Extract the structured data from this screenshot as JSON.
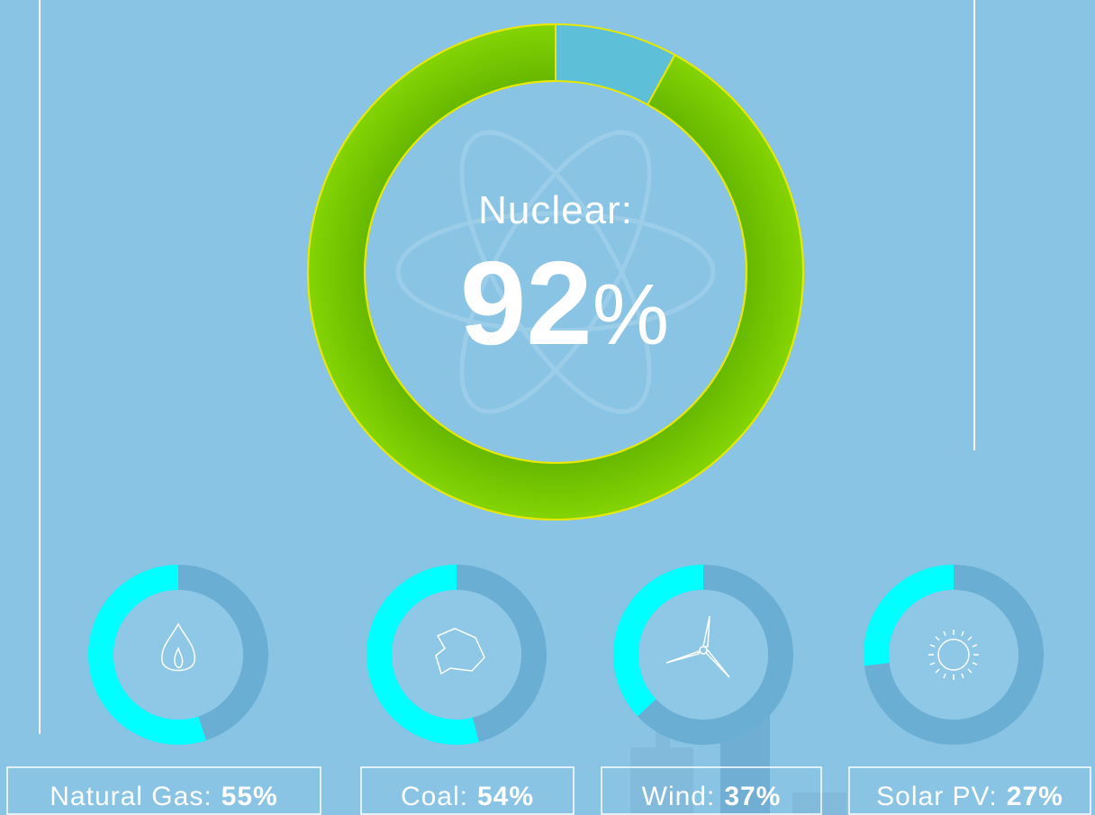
{
  "chart_data": [
    {
      "type": "donut",
      "title": "Nuclear:",
      "values": [
        92
      ],
      "value_labels": [
        "92%"
      ],
      "color": "#78cc00",
      "ylim": [
        0,
        100
      ]
    },
    {
      "type": "donut",
      "title": "Natural Gas:",
      "values": [
        55
      ],
      "value_labels": [
        "55%"
      ],
      "color": "#00ffff",
      "ylim": [
        0,
        100
      ]
    },
    {
      "type": "donut",
      "title": "Coal:",
      "values": [
        54
      ],
      "value_labels": [
        "54%"
      ],
      "color": "#00ffff",
      "ylim": [
        0,
        100
      ]
    },
    {
      "type": "donut",
      "title": "Wind:",
      "values": [
        37
      ],
      "value_labels": [
        "37%"
      ],
      "color": "#00ffff",
      "ylim": [
        0,
        100
      ]
    },
    {
      "type": "donut",
      "title": "Solar PV:",
      "values": [
        27
      ],
      "value_labels": [
        "27%"
      ],
      "color": "#00ffff",
      "ylim": [
        0,
        100
      ]
    }
  ]
}
